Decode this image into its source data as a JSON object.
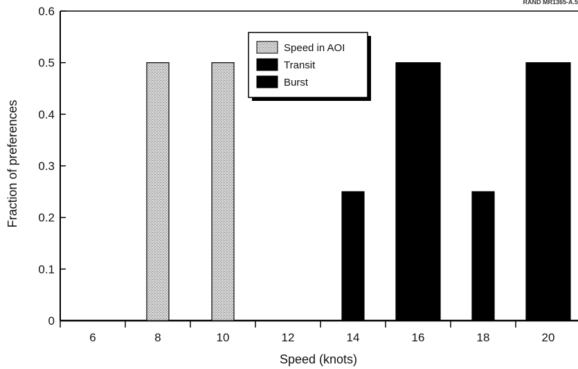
{
  "corner_text": "RAND MR1365-A.5",
  "chart_data": {
    "type": "bar",
    "xlabel": "Speed (knots)",
    "ylabel": "Fraction of preferences",
    "x_ticks": [
      6,
      8,
      10,
      12,
      14,
      16,
      18,
      20
    ],
    "y_ticks": [
      0,
      0.1,
      0.2,
      0.3,
      0.4,
      0.5,
      0.6
    ],
    "ylim": [
      0,
      0.6
    ],
    "xlim": [
      5,
      22
    ],
    "legend_position": "top-center",
    "series": [
      {
        "name": "Speed in AOI",
        "pattern": "stipple",
        "color": "#c8c8c8",
        "points": [
          {
            "x": 8,
            "y": 0.5
          },
          {
            "x": 10,
            "y": 0.5
          }
        ]
      },
      {
        "name": "Transit",
        "pattern": "solid",
        "color": "#000000",
        "points": [
          {
            "x": 14,
            "y": 0.25
          },
          {
            "x": 16,
            "y": 0.5
          },
          {
            "x": 18,
            "y": 0.25
          },
          {
            "x": 20,
            "y": 0.5
          }
        ]
      },
      {
        "name": "Burst",
        "pattern": "solid",
        "color": "#000000",
        "points": []
      }
    ]
  }
}
